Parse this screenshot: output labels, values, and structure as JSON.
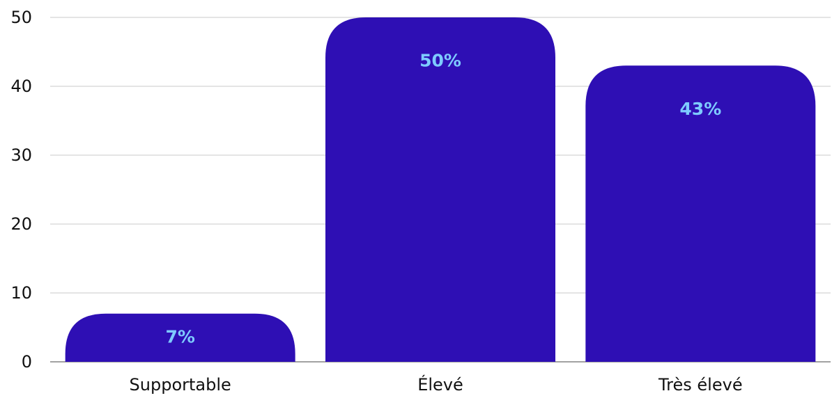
{
  "chart_data": {
    "type": "bar",
    "categories": [
      "Supportable",
      "Élevé",
      "Très élevé"
    ],
    "values": [
      7,
      50,
      43
    ],
    "data_labels": [
      "7%",
      "50%",
      "43%"
    ],
    "ylim": [
      0,
      50
    ],
    "yticks": [
      "0",
      "10",
      "20",
      "30",
      "40",
      "50"
    ],
    "title": "",
    "xlabel": "",
    "ylabel": "",
    "grid": true,
    "colors": {
      "bar": "#2e0fb4",
      "data_label": "#7ecbff",
      "text": "#111111",
      "grid": "#c8c8c8"
    }
  }
}
